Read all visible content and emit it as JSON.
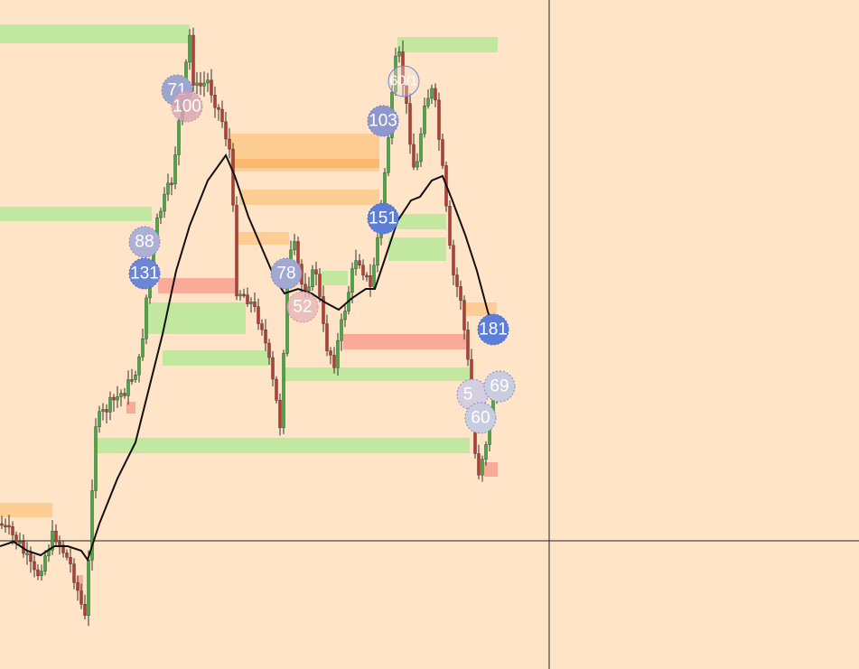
{
  "bubbles": [
    {
      "label": "71"
    },
    {
      "label": "100"
    },
    {
      "label": "60/1"
    },
    {
      "label": "103"
    },
    {
      "label": "151"
    },
    {
      "label": "88"
    },
    {
      "label": "131"
    },
    {
      "label": "78"
    },
    {
      "label": "52"
    },
    {
      "label": "181"
    },
    {
      "label": "5"
    },
    {
      "label": "69"
    },
    {
      "label": "60"
    }
  ]
}
